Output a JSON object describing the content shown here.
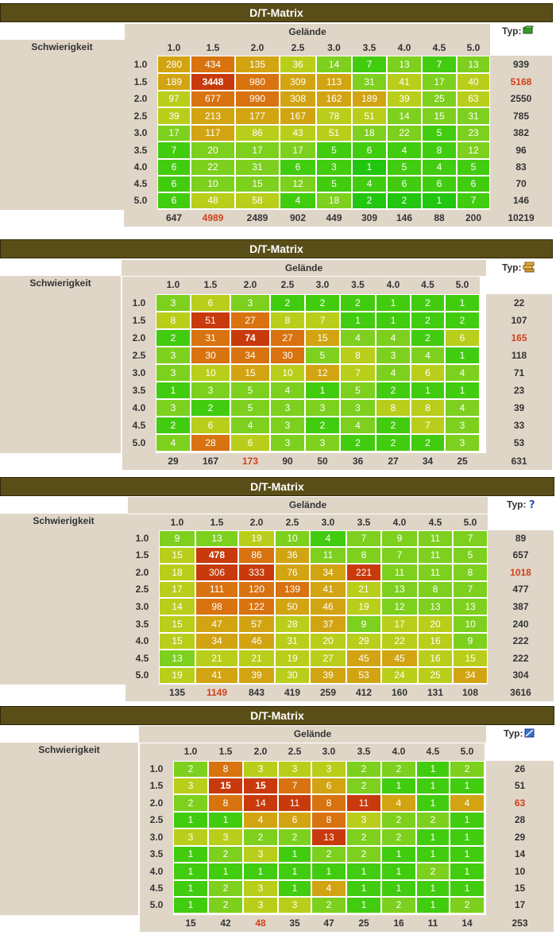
{
  "colors": {
    "title_bg": "#5a4e18",
    "panel_bg": "#e0d6c8",
    "max_total": "#d0421a",
    "scale": [
      "#22c510",
      "#42cc10",
      "#7dd01e",
      "#b9ce1a",
      "#d2a412",
      "#d87310",
      "#c83a0c"
    ]
  },
  "matrices": [
    {
      "title": "D/T-Matrix",
      "terrain_label": "Gelände",
      "difficulty_label": "Schwierigkeit",
      "type_label": "Typ:",
      "type_icon": "traditional-cache-icon",
      "col_headers": [
        "1.0",
        "1.5",
        "2.0",
        "2.5",
        "3.0",
        "3.5",
        "4.0",
        "4.5",
        "5.0"
      ],
      "row_headers": [
        "1.0",
        "1.5",
        "2.0",
        "2.5",
        "3.0",
        "3.5",
        "4.0",
        "4.5",
        "5.0"
      ],
      "cells": [
        [
          280,
          434,
          135,
          36,
          14,
          7,
          13,
          7,
          13
        ],
        [
          189,
          3448,
          980,
          309,
          113,
          31,
          41,
          17,
          40
        ],
        [
          97,
          677,
          990,
          308,
          162,
          189,
          39,
          25,
          63
        ],
        [
          39,
          213,
          177,
          167,
          78,
          51,
          14,
          15,
          31
        ],
        [
          17,
          117,
          86,
          43,
          51,
          18,
          22,
          5,
          23
        ],
        [
          7,
          20,
          17,
          17,
          5,
          6,
          4,
          8,
          12
        ],
        [
          6,
          22,
          31,
          6,
          3,
          1,
          5,
          4,
          5
        ],
        [
          6,
          10,
          15,
          12,
          5,
          4,
          6,
          6,
          6
        ],
        [
          6,
          48,
          58,
          4,
          18,
          2,
          2,
          1,
          7
        ]
      ],
      "row_totals": [
        "939",
        "5168",
        "2550",
        "785",
        "382",
        "96",
        "83",
        "70",
        "146"
      ],
      "col_totals": [
        "647",
        "4989",
        "2489",
        "902",
        "449",
        "309",
        "146",
        "88",
        "200"
      ],
      "grand_total": "10219"
    },
    {
      "title": "D/T-Matrix",
      "terrain_label": "Gelände",
      "difficulty_label": "Schwierigkeit",
      "type_label": "Typ:",
      "type_icon": "multi-cache-icon",
      "col_headers": [
        "1.0",
        "1.5",
        "2.0",
        "2.5",
        "3.0",
        "3.5",
        "4.0",
        "4.5",
        "5.0"
      ],
      "row_headers": [
        "1.0",
        "1.5",
        "2.0",
        "2.5",
        "3.0",
        "3.5",
        "4.0",
        "4.5",
        "5.0"
      ],
      "cells": [
        [
          3,
          6,
          3,
          2,
          2,
          2,
          1,
          2,
          1
        ],
        [
          8,
          51,
          27,
          8,
          7,
          1,
          1,
          2,
          2
        ],
        [
          2,
          31,
          74,
          27,
          15,
          4,
          4,
          2,
          6
        ],
        [
          3,
          30,
          34,
          30,
          5,
          8,
          3,
          4,
          1
        ],
        [
          3,
          10,
          15,
          10,
          12,
          7,
          4,
          6,
          4
        ],
        [
          1,
          3,
          5,
          4,
          1,
          5,
          2,
          1,
          1
        ],
        [
          3,
          2,
          5,
          3,
          3,
          3,
          8,
          8,
          4
        ],
        [
          2,
          6,
          4,
          3,
          2,
          4,
          2,
          7,
          3
        ],
        [
          4,
          28,
          6,
          3,
          3,
          2,
          2,
          2,
          3
        ]
      ],
      "row_totals": [
        "22",
        "107",
        "165",
        "118",
        "71",
        "23",
        "39",
        "33",
        "53"
      ],
      "col_totals": [
        "29",
        "167",
        "173",
        "90",
        "50",
        "36",
        "27",
        "34",
        "25"
      ],
      "grand_total": "631"
    },
    {
      "title": "D/T-Matrix",
      "terrain_label": "Gelände",
      "difficulty_label": "Schwierigkeit",
      "type_label": "Typ:",
      "type_icon": "mystery-cache-icon",
      "col_headers": [
        "1.0",
        "1.5",
        "2.0",
        "2.5",
        "3.0",
        "3.5",
        "4.0",
        "4.5",
        "5.0"
      ],
      "row_headers": [
        "1.0",
        "1.5",
        "2.0",
        "2.5",
        "3.0",
        "3.5",
        "4.0",
        "4.5",
        "5.0"
      ],
      "cells": [
        [
          9,
          13,
          19,
          10,
          4,
          7,
          9,
          11,
          7
        ],
        [
          15,
          478,
          86,
          36,
          11,
          8,
          7,
          11,
          5
        ],
        [
          18,
          306,
          333,
          76,
          34,
          221,
          11,
          11,
          8
        ],
        [
          17,
          111,
          120,
          139,
          41,
          21,
          13,
          8,
          7
        ],
        [
          14,
          98,
          122,
          50,
          46,
          19,
          12,
          13,
          13
        ],
        [
          15,
          47,
          57,
          28,
          37,
          9,
          17,
          20,
          10
        ],
        [
          15,
          34,
          46,
          31,
          20,
          29,
          22,
          16,
          9
        ],
        [
          13,
          21,
          21,
          19,
          27,
          45,
          45,
          16,
          15
        ],
        [
          19,
          41,
          39,
          30,
          39,
          53,
          24,
          25,
          34
        ]
      ],
      "row_totals": [
        "89",
        "657",
        "1018",
        "477",
        "387",
        "240",
        "222",
        "222",
        "304"
      ],
      "col_totals": [
        "135",
        "1149",
        "843",
        "419",
        "259",
        "412",
        "160",
        "131",
        "108"
      ],
      "grand_total": "3616"
    },
    {
      "title": "D/T-Matrix",
      "terrain_label": "Gelände",
      "difficulty_label": "Schwierigkeit",
      "type_label": "Typ:",
      "type_icon": "letterbox-cache-icon",
      "col_headers": [
        "1.0",
        "1.5",
        "2.0",
        "2.5",
        "3.0",
        "3.5",
        "4.0",
        "4.5",
        "5.0"
      ],
      "row_headers": [
        "1.0",
        "1.5",
        "2.0",
        "2.5",
        "3.0",
        "3.5",
        "4.0",
        "4.5",
        "5.0"
      ],
      "cells": [
        [
          2,
          8,
          3,
          3,
          3,
          2,
          2,
          1,
          2
        ],
        [
          3,
          15,
          15,
          7,
          6,
          2,
          1,
          1,
          1
        ],
        [
          2,
          8,
          14,
          11,
          8,
          11,
          4,
          1,
          4
        ],
        [
          1,
          1,
          4,
          6,
          8,
          3,
          2,
          2,
          1
        ],
        [
          3,
          3,
          2,
          2,
          13,
          2,
          2,
          1,
          1
        ],
        [
          1,
          2,
          3,
          1,
          2,
          2,
          1,
          1,
          1
        ],
        [
          1,
          1,
          1,
          1,
          1,
          1,
          1,
          2,
          1
        ],
        [
          1,
          2,
          3,
          1,
          4,
          1,
          1,
          1,
          1
        ],
        [
          1,
          2,
          3,
          3,
          2,
          1,
          2,
          1,
          2
        ]
      ],
      "row_totals": [
        "26",
        "51",
        "63",
        "28",
        "29",
        "14",
        "10",
        "15",
        "17"
      ],
      "col_totals": [
        "15",
        "42",
        "48",
        "35",
        "47",
        "25",
        "16",
        "11",
        "14"
      ],
      "grand_total": "253"
    }
  ]
}
